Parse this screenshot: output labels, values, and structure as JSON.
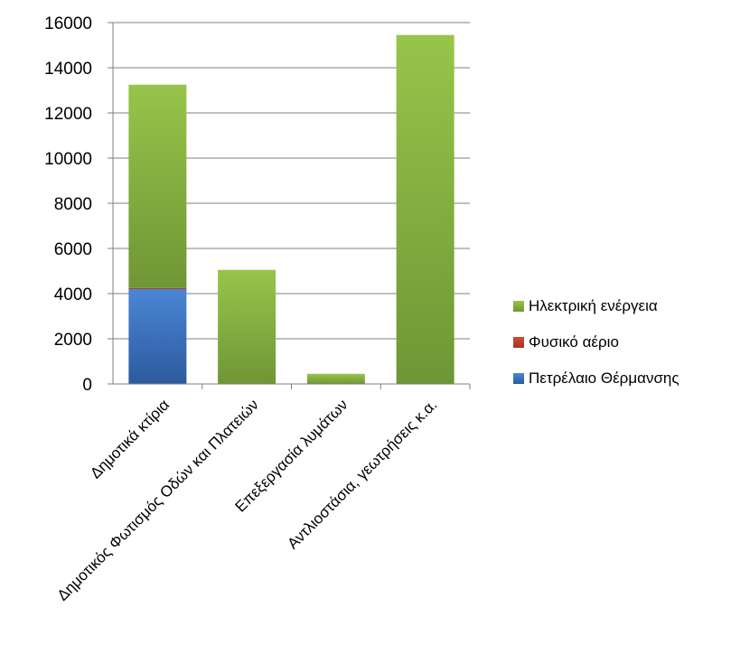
{
  "chart_data": {
    "type": "bar",
    "stacked": true,
    "categories": [
      "Δημοτικά κτίρια",
      "Δημοτικός Φωτισμός Οδών και Πλατειών",
      "Επεξεργασία λυμάτων",
      "Αντλιοστάσια, γεωτρήσεις κ.α."
    ],
    "series": [
      {
        "name": "Πετρέλαιο Θέρμανσης",
        "color": "#3f74c0",
        "values": [
          4200,
          0,
          0,
          0
        ]
      },
      {
        "name": "Φυσικό αέριο",
        "color": "#c0392b",
        "values": [
          50,
          0,
          0,
          0
        ]
      },
      {
        "name": "Ηλεκτρική ενέργεια",
        "color": "#8ab43f",
        "values": [
          9000,
          5050,
          450,
          15450
        ]
      }
    ],
    "ylim": [
      0,
      16000
    ],
    "yticks": [
      "0",
      "2000",
      "4000",
      "6000",
      "8000",
      "10000",
      "12000",
      "14000",
      "16000"
    ],
    "grid": true,
    "legend_position": "right",
    "legend_order": [
      "Ηλεκτρική ενέργεια",
      "Φυσικό αέριο",
      "Πετρέλαιο Θέρμανσης"
    ],
    "title": "",
    "xlabel": "",
    "ylabel": ""
  }
}
